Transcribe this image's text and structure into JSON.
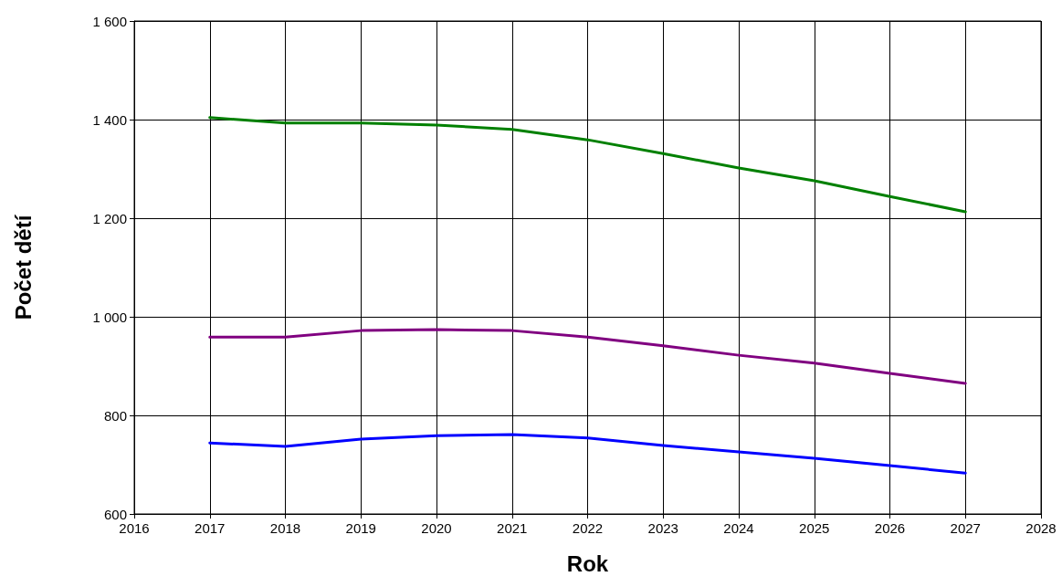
{
  "chart_data": {
    "type": "line",
    "xlabel": "Rok",
    "ylabel": "Počet dětí",
    "x": [
      2017,
      2018,
      2019,
      2020,
      2021,
      2022,
      2023,
      2024,
      2025,
      2026,
      2027
    ],
    "series": [
      {
        "color": "#008000",
        "values": [
          1404,
          1393,
          1393,
          1389,
          1380,
          1359,
          1331,
          1302,
          1276,
          1244,
          1213
        ]
      },
      {
        "color": "#800080",
        "values": [
          959,
          959,
          972,
          974,
          972,
          959,
          941,
          922,
          906,
          885,
          865
        ]
      },
      {
        "color": "#0000ff",
        "values": [
          744,
          737,
          752,
          759,
          761,
          754,
          739,
          726,
          713,
          698,
          683
        ]
      }
    ],
    "xlim": [
      2016,
      2028
    ],
    "xticks": [
      2016,
      2017,
      2018,
      2019,
      2020,
      2021,
      2022,
      2023,
      2024,
      2025,
      2026,
      2027,
      2028
    ],
    "ylim": [
      600,
      1600
    ],
    "yticks": [
      600,
      800,
      {
        "value": 1000,
        "label": "1 000"
      },
      {
        "value": 1200,
        "label": "1 200"
      },
      {
        "value": 1400,
        "label": "1 400"
      },
      {
        "value": 1600,
        "label": "1 600"
      }
    ],
    "grid": true,
    "marker": "none",
    "line_style": "solid"
  }
}
